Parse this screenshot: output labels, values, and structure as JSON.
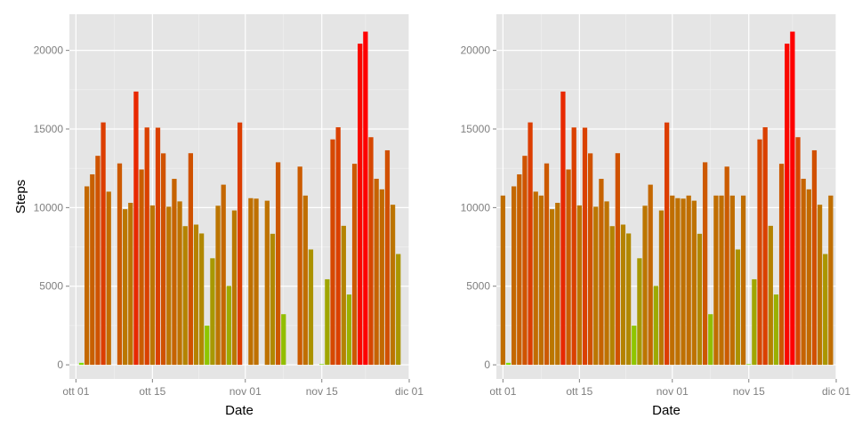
{
  "colors": {
    "panel_background": "#E5E5E5",
    "grid_major": "#FFFFFF",
    "grid_minor": "#F2F2F2",
    "tick_text": "#7F7F7F",
    "bar_low": "#7FE000",
    "bar_mid": "#E08000",
    "bar_high": "#FF0000"
  },
  "chart_data": [
    {
      "type": "bar",
      "title": "",
      "xlabel": "Date",
      "ylabel": "Steps",
      "ylim": [
        -900,
        22300
      ],
      "x_range_day": [
        -1.2,
        61
      ],
      "y_ticks": [
        0,
        5000,
        10000,
        15000,
        20000
      ],
      "y_tick_labels": [
        "0",
        "5000",
        "10000",
        "15000",
        "20000"
      ],
      "x_ticks_day": [
        0,
        14,
        31,
        45,
        61
      ],
      "x_tick_labels": [
        "ott 01",
        "ott 15",
        "nov 01",
        "nov 15",
        "dic 01"
      ],
      "x_base_date": "2012-10-01",
      "fill_scale": {
        "low": "#7FE000",
        "high": "#FF0000",
        "min": 0,
        "max": 21194
      },
      "series": [
        {
          "name": "Steps",
          "day_index": [
            0,
            1,
            2,
            3,
            4,
            5,
            6,
            7,
            8,
            9,
            10,
            11,
            12,
            13,
            14,
            15,
            16,
            17,
            18,
            19,
            20,
            21,
            22,
            23,
            24,
            25,
            26,
            27,
            28,
            29,
            30,
            31,
            32,
            33,
            34,
            35,
            36,
            37,
            38,
            39,
            40,
            41,
            42,
            43,
            44,
            45,
            46,
            47,
            48,
            49,
            50,
            51,
            52,
            53,
            54,
            55,
            56,
            57,
            58,
            59,
            60
          ],
          "values": [
            0,
            126,
            11352,
            12116,
            13294,
            15420,
            11015,
            0,
            12811,
            9900,
            10304,
            17382,
            12426,
            15098,
            10139,
            15084,
            13452,
            10056,
            11829,
            10395,
            8821,
            13460,
            8918,
            8355,
            2492,
            6778,
            10119,
            11458,
            5018,
            9819,
            15414,
            0,
            10600,
            10571,
            0,
            10439,
            8334,
            12883,
            3219,
            0,
            0,
            12608,
            10765,
            7336,
            0,
            41,
            5441,
            14339,
            15110,
            8841,
            4472,
            12787,
            20427,
            21194,
            14478,
            11834,
            11162,
            13646,
            10183,
            7047,
            0
          ]
        }
      ]
    },
    {
      "type": "bar",
      "title": "",
      "xlabel": "Date",
      "ylabel": "",
      "ylim": [
        -900,
        22300
      ],
      "x_range_day": [
        -1.2,
        61
      ],
      "y_ticks": [
        0,
        5000,
        10000,
        15000,
        20000
      ],
      "y_tick_labels": [
        "0",
        "5000",
        "10000",
        "15000",
        "20000"
      ],
      "x_ticks_day": [
        0,
        14,
        31,
        45,
        61
      ],
      "x_tick_labels": [
        "ott 01",
        "ott 15",
        "nov 01",
        "nov 15",
        "dic 01"
      ],
      "x_base_date": "2012-10-01",
      "fill_scale": {
        "low": "#7FE000",
        "high": "#FF0000",
        "min": 0,
        "max": 21194
      },
      "series": [
        {
          "name": "Steps",
          "day_index": [
            0,
            1,
            2,
            3,
            4,
            5,
            6,
            7,
            8,
            9,
            10,
            11,
            12,
            13,
            14,
            15,
            16,
            17,
            18,
            19,
            20,
            21,
            22,
            23,
            24,
            25,
            26,
            27,
            28,
            29,
            30,
            31,
            32,
            33,
            34,
            35,
            36,
            37,
            38,
            39,
            40,
            41,
            42,
            43,
            44,
            45,
            46,
            47,
            48,
            49,
            50,
            51,
            52,
            53,
            54,
            55,
            56,
            57,
            58,
            59,
            60
          ],
          "values": [
            10766,
            126,
            11352,
            12116,
            13294,
            15420,
            11015,
            10766,
            12811,
            9900,
            10304,
            17382,
            12426,
            15098,
            10139,
            15084,
            13452,
            10056,
            11829,
            10395,
            8821,
            13460,
            8918,
            8355,
            2492,
            6778,
            10119,
            11458,
            5018,
            9819,
            15414,
            10766,
            10600,
            10571,
            10766,
            10439,
            8334,
            12883,
            3219,
            10766,
            10766,
            12608,
            10765,
            7336,
            10766,
            41,
            5441,
            14339,
            15110,
            8841,
            4472,
            12787,
            20427,
            21194,
            14478,
            11834,
            11162,
            13646,
            10183,
            7047,
            10766
          ]
        }
      ]
    }
  ]
}
